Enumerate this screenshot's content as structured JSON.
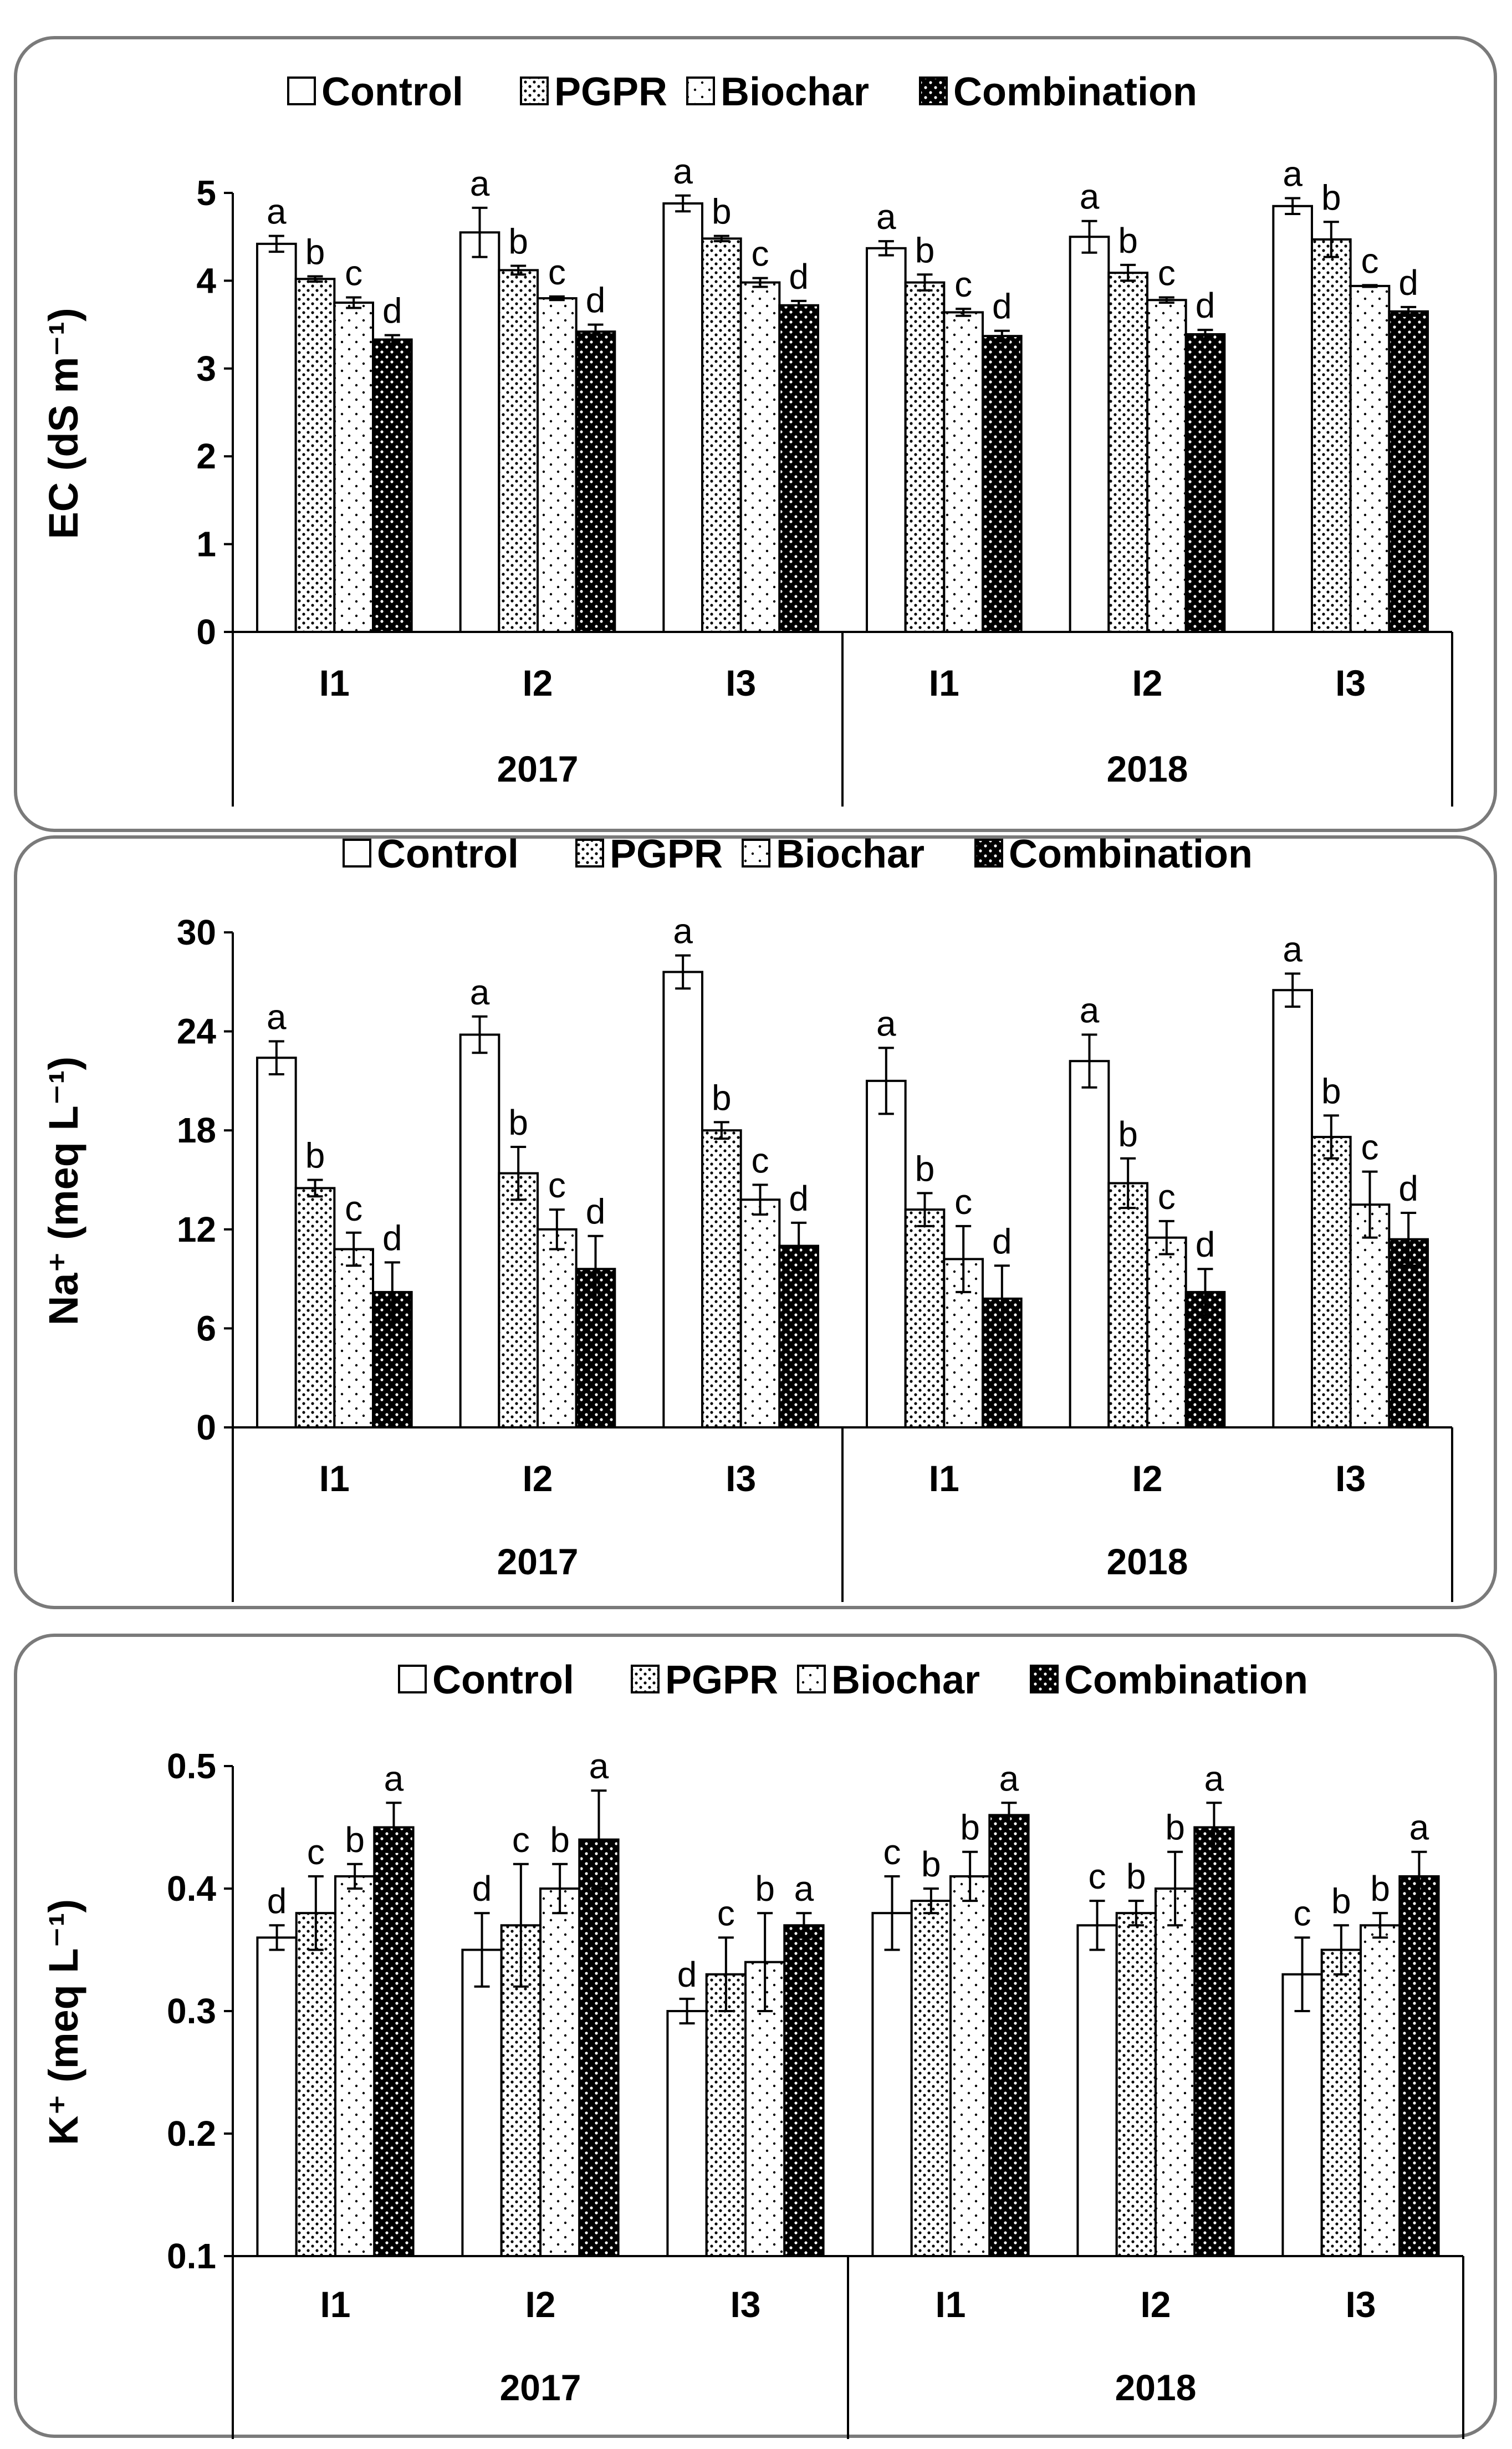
{
  "colors": {
    "frame": "#7a7a7a",
    "ink": "#000000",
    "background": "#ffffff"
  },
  "legend": [
    "Control",
    "PGPR",
    "Biochar",
    "Combination"
  ],
  "chart_data": [
    {
      "type": "bar",
      "panel": "EC",
      "ylabel": "EC (dS m⁻¹)",
      "ylim": [
        0,
        5
      ],
      "yticks": [
        "0",
        "1",
        "2",
        "3",
        "4",
        "5"
      ],
      "categories": [
        "I1",
        "I2",
        "I3",
        "I1",
        "I2",
        "I3"
      ],
      "groups": [
        "2017",
        "2018"
      ],
      "series": [
        {
          "name": "Control",
          "values": [
            4.42,
            4.55,
            4.88,
            4.37,
            4.5,
            4.85
          ],
          "errors": [
            0.09,
            0.28,
            0.09,
            0.08,
            0.18,
            0.09
          ],
          "letters": [
            "a",
            "a",
            "a",
            "a",
            "a",
            "a"
          ]
        },
        {
          "name": "PGPR",
          "values": [
            4.02,
            4.12,
            4.48,
            3.98,
            4.09,
            4.47
          ],
          "errors": [
            0.03,
            0.05,
            0.03,
            0.09,
            0.09,
            0.2
          ],
          "letters": [
            "b",
            "b",
            "b",
            "b",
            "b",
            "b"
          ]
        },
        {
          "name": "Biochar",
          "values": [
            3.75,
            3.8,
            3.98,
            3.64,
            3.78,
            3.94
          ],
          "errors": [
            0.06,
            0.02,
            0.05,
            0.04,
            0.03,
            0.01
          ],
          "letters": [
            "c",
            "c",
            "c",
            "c",
            "c",
            "c"
          ]
        },
        {
          "name": "Combination",
          "values": [
            3.33,
            3.42,
            3.72,
            3.37,
            3.39,
            3.65
          ],
          "errors": [
            0.05,
            0.08,
            0.05,
            0.06,
            0.05,
            0.05
          ],
          "letters": [
            "d",
            "d",
            "d",
            "d",
            "d",
            "d"
          ]
        }
      ]
    },
    {
      "type": "bar",
      "panel": "Na+",
      "ylabel": "Na⁺ (meq L⁻¹)",
      "ylim": [
        0,
        30
      ],
      "yticks": [
        "0",
        "6",
        "12",
        "18",
        "24",
        "30"
      ],
      "categories": [
        "I1",
        "I2",
        "I3",
        "I1",
        "I2",
        "I3"
      ],
      "groups": [
        "2017",
        "2018"
      ],
      "series": [
        {
          "name": "Control",
          "values": [
            22.4,
            23.8,
            27.6,
            21.0,
            22.2,
            26.5
          ],
          "errors": [
            1.0,
            1.1,
            1.0,
            2.0,
            1.6,
            1.0
          ],
          "letters": [
            "a",
            "a",
            "a",
            "a",
            "a",
            "a"
          ]
        },
        {
          "name": "PGPR",
          "values": [
            14.5,
            15.4,
            18.0,
            13.2,
            14.8,
            17.6
          ],
          "errors": [
            0.5,
            1.6,
            0.5,
            1.0,
            1.5,
            1.3
          ],
          "letters": [
            "b",
            "b",
            "b",
            "b",
            "b",
            "b"
          ]
        },
        {
          "name": "Biochar",
          "values": [
            10.8,
            12.0,
            13.8,
            10.2,
            11.5,
            13.5
          ],
          "errors": [
            1.0,
            1.2,
            0.9,
            2.0,
            1.0,
            2.0
          ],
          "letters": [
            "c",
            "c",
            "c",
            "c",
            "c",
            "c"
          ]
        },
        {
          "name": "Combination",
          "values": [
            8.2,
            9.6,
            11.0,
            7.8,
            8.2,
            11.4
          ],
          "errors": [
            1.8,
            2.0,
            1.4,
            2.0,
            1.4,
            1.6
          ],
          "letters": [
            "d",
            "d",
            "d",
            "d",
            "d",
            "d"
          ]
        }
      ]
    },
    {
      "type": "bar",
      "panel": "K+",
      "ylabel": "K⁺ (meq L⁻¹)",
      "ylim": [
        0.1,
        0.5
      ],
      "yticks": [
        "0.1",
        "0.2",
        "0.3",
        "0.4",
        "0.5"
      ],
      "categories": [
        "I1",
        "I2",
        "I3",
        "I1",
        "I2",
        "I3"
      ],
      "groups": [
        "2017",
        "2018"
      ],
      "series": [
        {
          "name": "Control",
          "values": [
            0.36,
            0.35,
            0.3,
            0.38,
            0.37,
            0.33
          ],
          "errors": [
            0.01,
            0.03,
            0.01,
            0.03,
            0.02,
            0.03
          ],
          "letters": [
            "d",
            "d",
            "d",
            "c",
            "c",
            "c"
          ]
        },
        {
          "name": "PGPR",
          "values": [
            0.38,
            0.37,
            0.33,
            0.39,
            0.38,
            0.35
          ],
          "errors": [
            0.03,
            0.05,
            0.03,
            0.01,
            0.01,
            0.02
          ],
          "letters": [
            "c",
            "c",
            "c",
            "b",
            "b",
            "b"
          ]
        },
        {
          "name": "Biochar",
          "values": [
            0.41,
            0.4,
            0.34,
            0.41,
            0.4,
            0.37
          ],
          "errors": [
            0.01,
            0.02,
            0.04,
            0.02,
            0.03,
            0.01
          ],
          "letters": [
            "b",
            "b",
            "b",
            "b",
            "b",
            "b"
          ]
        },
        {
          "name": "Combination",
          "values": [
            0.45,
            0.44,
            0.37,
            0.46,
            0.45,
            0.41
          ],
          "errors": [
            0.02,
            0.04,
            0.01,
            0.01,
            0.02,
            0.02
          ],
          "letters": [
            "a",
            "a",
            "a",
            "a",
            "a",
            "a"
          ]
        }
      ]
    }
  ]
}
